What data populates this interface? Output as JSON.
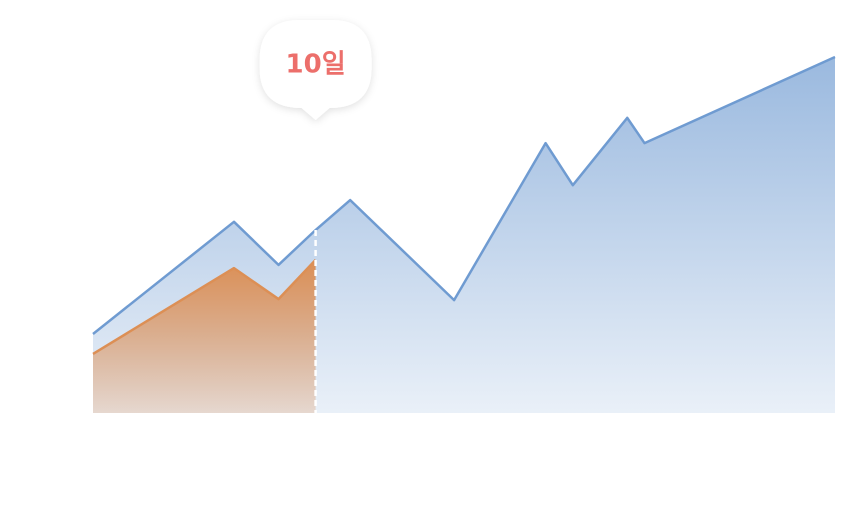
{
  "chart_data": {
    "type": "area",
    "x": [
      1,
      6.7,
      8.5,
      10,
      11.4,
      15.6,
      19.3,
      20.4,
      22.6,
      23.3,
      31
    ],
    "xlim": [
      1,
      31
    ],
    "ylim": [
      0,
      100
    ],
    "series": [
      {
        "color": "#6f9bd1",
        "values": [
          22.2,
          53.7,
          41.6,
          51.4,
          59.8,
          31.7,
          75.8,
          64,
          82.9,
          75.8,
          100
        ]
      },
      {
        "color": "#dc8f55",
        "values": [
          16.6,
          40.7,
          32,
          43,
          null,
          null,
          null,
          null,
          null,
          null,
          null
        ]
      }
    ],
    "marker": {
      "x": 10,
      "label": "10일"
    }
  }
}
